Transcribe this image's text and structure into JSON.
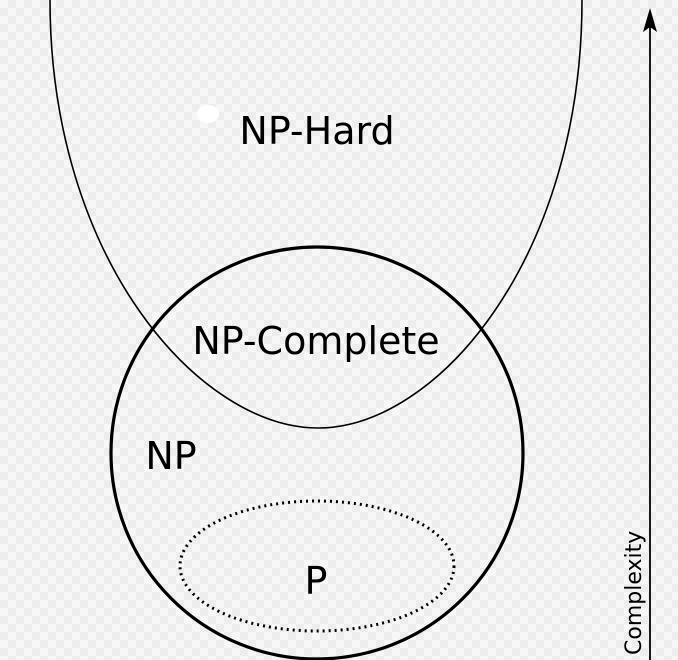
{
  "diagram": {
    "sets": {
      "np_hard": {
        "label": "NP-Hard"
      },
      "np_complete": {
        "label": "NP-Complete"
      },
      "np": {
        "label": "NP"
      },
      "p": {
        "label": "P"
      }
    },
    "axis": {
      "label": "Complexity"
    }
  }
}
